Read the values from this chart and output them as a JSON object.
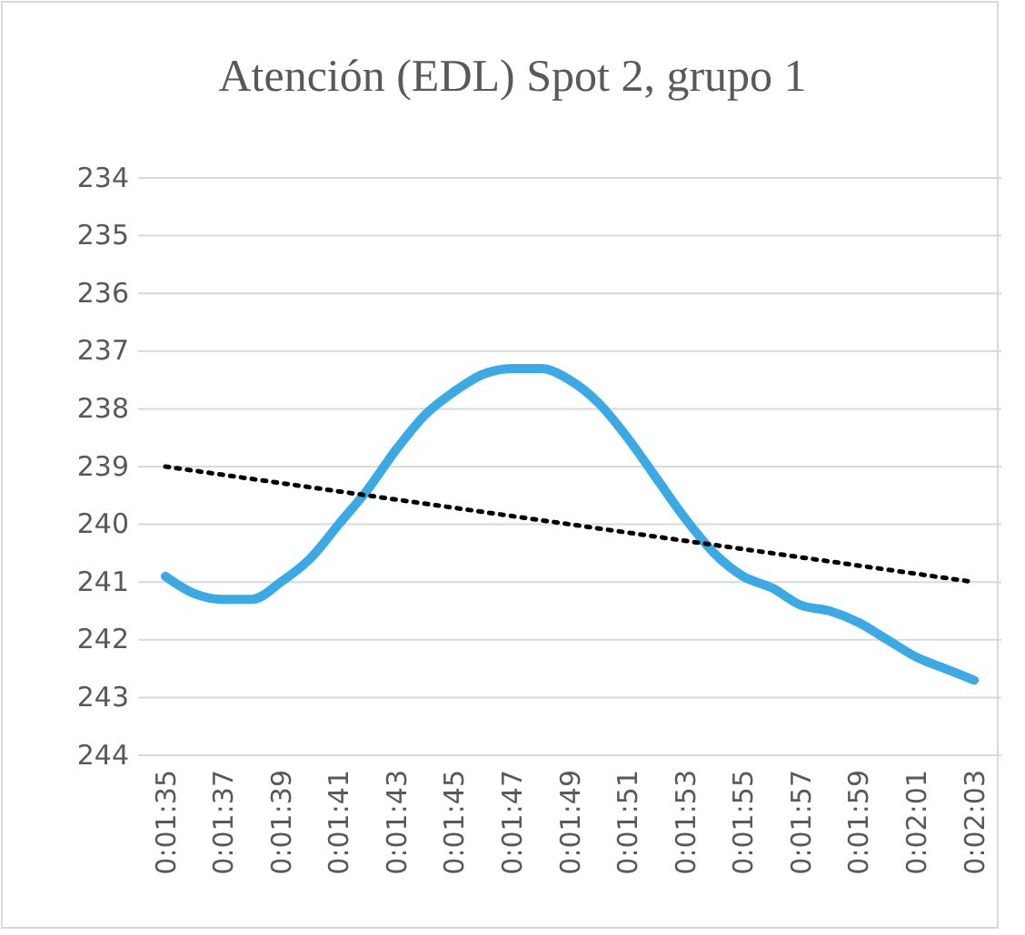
{
  "chart_data": {
    "type": "line",
    "title": "Atención (EDL) Spot 2, grupo 1",
    "categories": [
      "0:01:35",
      null,
      "0:01:37",
      null,
      "0:01:39",
      null,
      "0:01:41",
      null,
      "0:01:43",
      null,
      "0:01:45",
      null,
      "0:01:47",
      null,
      "0:01:49",
      null,
      "0:01:51",
      null,
      "0:01:53",
      null,
      "0:01:55",
      null,
      "0:01:57",
      null,
      "0:01:59",
      null,
      "0:02:01",
      null,
      "0:02:03"
    ],
    "series": [
      {
        "color": "#3aaae6",
        "values": [
          240.9,
          241.2,
          241.3,
          241.3,
          241.0,
          240.6,
          240.0,
          239.4,
          238.7,
          238.1,
          237.7,
          237.4,
          237.3,
          237.3,
          237.5,
          237.9,
          238.5,
          239.2,
          239.9,
          240.5,
          240.9,
          241.1,
          241.4,
          241.5,
          241.7,
          242.0,
          242.3,
          242.5,
          242.7
        ]
      },
      {
        "color": "#000000",
        "line_style": "dotted",
        "values": [
          239.0,
          null,
          null,
          null,
          null,
          null,
          null,
          null,
          null,
          null,
          null,
          null,
          null,
          null,
          null,
          null,
          null,
          null,
          null,
          null,
          null,
          null,
          null,
          null,
          null,
          null,
          null,
          null,
          241.0
        ]
      }
    ],
    "ylim": [
      244,
      234
    ],
    "yticks": [
      234,
      235,
      236,
      237,
      238,
      239,
      240,
      241,
      242,
      243,
      244
    ],
    "grid": "y",
    "marker": "none"
  }
}
